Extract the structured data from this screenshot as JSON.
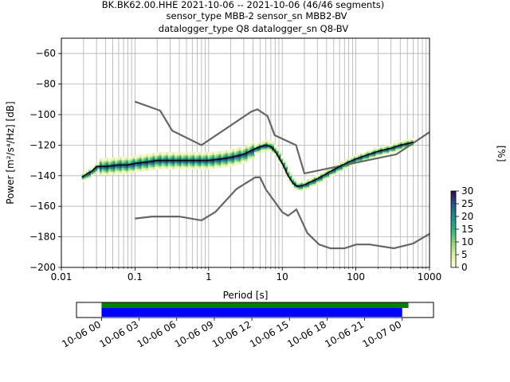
{
  "title": {
    "line1": "BK.BK62.00.HHE   2021-10-06 -- 2021-10-06  (46/46 segments)",
    "line2": "sensor_type MBB-2 sensor_sn MBB2-BV",
    "line3": "datalogger_type Q8 datalogger_sn Q8-BV"
  },
  "axes": {
    "xlabel": "Period [s]",
    "ylabel": "Power [m²/s⁴/Hz] [dB]",
    "colorbar_label": "[%]"
  },
  "colors": {
    "nlnm_nhnm": "#666666",
    "mode": "#000000",
    "grid": "#b0b0b0",
    "coverage_green": "#008000",
    "coverage_blue": "#0000ff"
  },
  "chart_data": [
    {
      "type": "heatmap",
      "title": "BK.BK62.00.HHE   2021-10-06 -- 2021-10-06  (46/46 segments)",
      "xlabel": "Period [s]",
      "ylabel": "Power [m²/s⁴/Hz] [dB]",
      "xscale": "log",
      "xlim": [
        0.01,
        1000
      ],
      "ylim": [
        -200,
        -50
      ],
      "xticks": [
        0.01,
        0.1,
        1,
        10,
        100,
        1000
      ],
      "xtick_labels": [
        "0.01",
        "0.1",
        "1",
        "10",
        "100",
        "1000"
      ],
      "yticks": [
        -200,
        -180,
        -160,
        -140,
        -120,
        -100,
        -80,
        -60
      ],
      "ytick_labels": [
        "−200",
        "−180",
        "−160",
        "−140",
        "−120",
        "−100",
        "−80",
        "−60"
      ],
      "grid": true,
      "colorbar": {
        "label": "[%]",
        "range": [
          0,
          30
        ],
        "ticks": [
          "0",
          "5",
          "10",
          "15",
          "20",
          "25",
          "30"
        ],
        "colormap": "viridis-like (light yellow to dark purple)"
      },
      "series": [
        {
          "kind": "mode",
          "x": [
            0.019,
            0.022,
            0.026,
            0.03,
            0.04,
            0.06,
            0.08,
            0.1,
            0.15,
            0.2,
            0.3,
            0.5,
            0.8,
            1.0,
            1.5,
            2.0,
            3.0,
            4.0,
            5.0,
            6.0,
            7.0,
            8.0,
            10.0,
            12.0,
            14.0,
            16.0,
            20.0,
            30.0,
            50.0,
            80.0,
            100.0,
            150.0,
            200.0,
            300.0,
            400.0,
            500.0,
            600.0
          ],
          "y": [
            -141,
            -139,
            -137,
            -134,
            -134,
            -133,
            -133,
            -132,
            -131,
            -130,
            -130,
            -130,
            -130,
            -130,
            -129,
            -128,
            -126,
            -123,
            -121,
            -120,
            -121,
            -124,
            -132,
            -140,
            -145,
            -147,
            -146,
            -142,
            -136,
            -131,
            -129,
            -126,
            -124,
            -122,
            -120,
            -119,
            -118
          ]
        },
        {
          "kind": "new_high_noise_model",
          "x": [
            0.1,
            0.22,
            0.32,
            0.8,
            3.8,
            4.6,
            6.3,
            7.9,
            15.4,
            20.0,
            354.8,
            1000
          ],
          "y": [
            -91.5,
            -97.4,
            -110.5,
            -120.0,
            -98.0,
            -96.5,
            -101.0,
            -113.5,
            -120.0,
            -138.5,
            -126.0,
            -111.5
          ]
        },
        {
          "kind": "new_low_noise_model",
          "x": [
            0.1,
            0.17,
            0.4,
            0.8,
            1.24,
            2.4,
            4.3,
            5.0,
            6.0,
            10.0,
            12.0,
            15.6,
            21.9,
            31.6,
            45.0,
            70.0,
            101.0,
            154.0,
            328.0,
            600.0,
            1000.0
          ],
          "y": [
            -168.0,
            -166.7,
            -166.7,
            -169.2,
            -163.7,
            -148.6,
            -141.1,
            -141.1,
            -149.0,
            -163.8,
            -166.2,
            -162.1,
            -177.5,
            -185.0,
            -187.5,
            -187.5,
            -185.0,
            -185.0,
            -187.5,
            -184.4,
            -178.0
          ]
        }
      ]
    },
    {
      "type": "bar",
      "title": "data coverage",
      "x_tick_labels": [
        "10-06 00",
        "10-06 03",
        "10-06 06",
        "10-06 09",
        "10-06 12",
        "10-06 15",
        "10-06 18",
        "10-06 21",
        "10-07 00"
      ],
      "xlim_hours": [
        -2,
        26.5
      ],
      "series": [
        {
          "name": "",
          "color": "#008000",
          "start_hour": 0.0,
          "end_hour": 24.5
        },
        {
          "name": "",
          "color": "#0000ff",
          "start_hour": 0.0,
          "end_hour": 24.0
        }
      ]
    }
  ]
}
